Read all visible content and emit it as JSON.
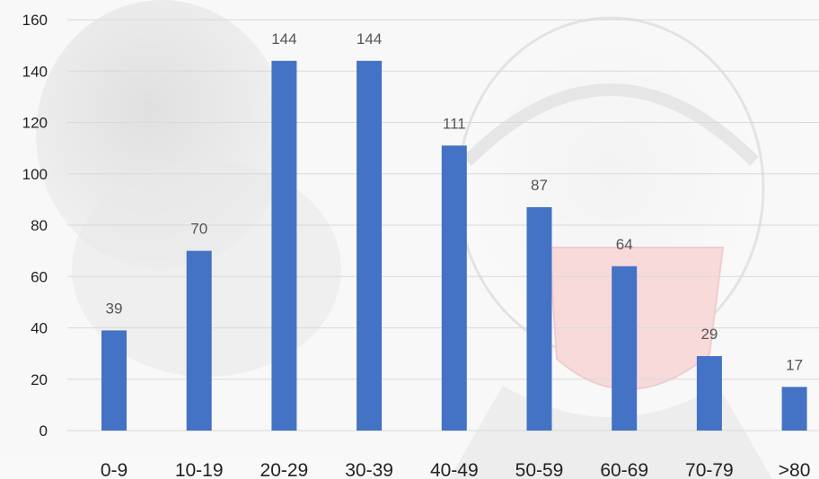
{
  "chart_data": {
    "type": "bar",
    "categories": [
      "0-9",
      "10-19",
      "20-29",
      "30-39",
      "40-49",
      "50-59",
      "60-69",
      "70-79",
      ">80"
    ],
    "values": [
      39,
      70,
      144,
      144,
      111,
      87,
      64,
      29,
      17
    ],
    "data_labels": [
      "39",
      "70",
      "144",
      "144",
      "111",
      "87",
      "64",
      "29",
      "17"
    ],
    "title": "",
    "xlabel": "",
    "ylabel": "",
    "ylim": [
      0,
      160
    ],
    "yticks": [
      0,
      20,
      40,
      60,
      80,
      100,
      120,
      140,
      160
    ],
    "ytick_labels": [
      "0",
      "20",
      "40",
      "60",
      "80",
      "100",
      "120",
      "140",
      "160"
    ],
    "grid": true,
    "legend": "none",
    "bar_color": "#4472c4",
    "background_image": "statue-with-brockton-strong-face-mask"
  }
}
